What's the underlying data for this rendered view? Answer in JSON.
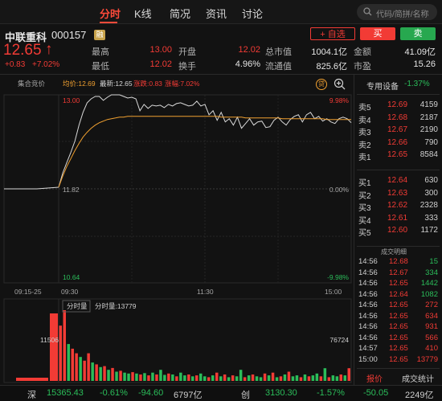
{
  "tabs": [
    {
      "label": "分时",
      "active": true
    },
    {
      "label": "K线",
      "active": false
    },
    {
      "label": "简况",
      "active": false
    },
    {
      "label": "资讯",
      "active": false
    },
    {
      "label": "讨论",
      "active": false
    }
  ],
  "search": {
    "placeholder": "代码/简拼/名称"
  },
  "stock": {
    "name": "中联重科",
    "code": "000157",
    "badge": "融",
    "price": "12.65",
    "arrow": "↑",
    "change": "+0.83",
    "change_pct": "+7.02%",
    "watch_label": "+ 自选",
    "sell_label": "卖",
    "buy_label": "买"
  },
  "stats": [
    [
      {
        "label": "最高",
        "value": "13.00",
        "color": "red"
      },
      {
        "label": "开盘",
        "value": "12.02",
        "color": "red"
      },
      {
        "label": "总市值",
        "value": "1004.1亿",
        "color": "white"
      },
      {
        "label": "金额",
        "value": "41.09亿",
        "color": "white"
      }
    ],
    [
      {
        "label": "最低",
        "value": "12.02",
        "color": "red"
      },
      {
        "label": "换手",
        "value": "4.96%",
        "color": "white"
      },
      {
        "label": "流通值",
        "value": "825.6亿",
        "color": "white"
      },
      {
        "label": "市盈",
        "value": "15.26",
        "color": "white"
      }
    ]
  ],
  "chart_header": {
    "auction_label": "集合竞价",
    "avg_label": "均价:12.69",
    "latest_label": "最新:12.65",
    "change_label": "涨跌:0.83",
    "pct_label": "涨幅:7.02%",
    "promo_badge": "贷"
  },
  "chart_data": {
    "type": "line",
    "x_ticks": [
      "09:15-25",
      "09:30",
      "11:30",
      "15:00"
    ],
    "y_left": {
      "top": "13.00",
      "mid": "11.82",
      "bottom": "10.64"
    },
    "y_right": {
      "top": "9.98%",
      "mid": "0.00%",
      "bottom": "-9.98%"
    },
    "ylim": [
      10.64,
      13.0
    ],
    "auction_price": [
      11.82,
      11.82,
      11.82,
      11.82,
      11.83,
      11.84
    ],
    "series": [
      {
        "name": "最新",
        "color": "#d8d8d8",
        "values": [
          11.84,
          12.02,
          12.15,
          12.28,
          12.42,
          12.62,
          12.78,
          12.9,
          12.95,
          12.98,
          12.98,
          12.93,
          12.97,
          13.0,
          13.0,
          13.0,
          12.98,
          12.96,
          12.97,
          12.95,
          12.8,
          12.88,
          12.83,
          12.87,
          12.86,
          12.87,
          12.84,
          12.88,
          12.86,
          12.89,
          12.9,
          12.88,
          12.86,
          12.87,
          12.92,
          12.86,
          12.88,
          12.75,
          12.8,
          12.68,
          12.78,
          12.66,
          12.7,
          12.62,
          12.72,
          12.58,
          12.64,
          12.7,
          12.62,
          12.66,
          12.67,
          12.59,
          12.6,
          12.68,
          12.72,
          12.66,
          12.62,
          12.69,
          12.73,
          12.75,
          12.66,
          12.75,
          12.78,
          12.7,
          12.73,
          12.67,
          12.7,
          12.66,
          12.64,
          12.7,
          12.72,
          12.7,
          12.65
        ]
      },
      {
        "name": "均价",
        "color": "#f0a030",
        "values": [
          11.84,
          11.98,
          12.1,
          12.2,
          12.3,
          12.39,
          12.47,
          12.53,
          12.58,
          12.62,
          12.65,
          12.67,
          12.69,
          12.7,
          12.71,
          12.72,
          12.72,
          12.73,
          12.73,
          12.73,
          12.73,
          12.73,
          12.73,
          12.73,
          12.73,
          12.73,
          12.73,
          12.73,
          12.73,
          12.73,
          12.73,
          12.73,
          12.73,
          12.73,
          12.73,
          12.73,
          12.73,
          12.73,
          12.73,
          12.73,
          12.72,
          12.72,
          12.72,
          12.72,
          12.72,
          12.72,
          12.71,
          12.71,
          12.71,
          12.71,
          12.71,
          12.71,
          12.71,
          12.71,
          12.71,
          12.7,
          12.7,
          12.7,
          12.7,
          12.7,
          12.7,
          12.7,
          12.7,
          12.7,
          12.7,
          12.7,
          12.69,
          12.69,
          12.69,
          12.69,
          12.69,
          12.69,
          12.69
        ]
      }
    ],
    "volume": {
      "label": "分时量",
      "current_label": "分时量:13779",
      "left_peak": "11506",
      "right_peak": "76724",
      "values": [
        60000,
        76724,
        40000,
        35000,
        30000,
        26000,
        22000,
        30000,
        20000,
        18000,
        15000,
        16000,
        12000,
        14000,
        10000,
        11000,
        9000,
        8000,
        9500,
        8000,
        7000,
        8500,
        6000,
        9000,
        7000,
        12000,
        6500,
        8000,
        7000,
        5000,
        9000,
        6000,
        7000,
        5000,
        6000,
        8000,
        5000,
        4000,
        6000,
        9000,
        5000,
        7000,
        4000,
        6000,
        5000,
        12000,
        4000,
        6000,
        7000,
        5000,
        4000,
        8000,
        6000,
        9000,
        4000,
        5000,
        7000,
        10000,
        5000,
        6000,
        4000,
        7000,
        5000,
        6000,
        8000,
        5000,
        13779,
        4000,
        6000,
        5000,
        7000,
        6000,
        13779
      ],
      "colors": [
        "r",
        "r",
        "g",
        "r",
        "r",
        "g",
        "r",
        "r",
        "g",
        "r",
        "g",
        "r",
        "g",
        "r",
        "g",
        "r",
        "g",
        "g",
        "r",
        "g",
        "r",
        "g",
        "r",
        "g",
        "r",
        "g",
        "g",
        "r",
        "g",
        "r",
        "g",
        "g",
        "r",
        "g",
        "r",
        "g",
        "g",
        "r",
        "g",
        "r",
        "g",
        "r",
        "g",
        "r",
        "g",
        "g",
        "r",
        "g",
        "r",
        "g",
        "g",
        "r",
        "g",
        "r",
        "g",
        "r",
        "g",
        "r",
        "g",
        "g",
        "r",
        "g",
        "r",
        "g",
        "g",
        "r",
        "g",
        "r",
        "g",
        "g",
        "r",
        "g",
        "r"
      ]
    }
  },
  "sector": {
    "name": "专用设备",
    "change": "-1.37%"
  },
  "orderbook": {
    "sells": [
      {
        "label": "卖5",
        "price": "12.69",
        "vol": "4159"
      },
      {
        "label": "卖4",
        "price": "12.68",
        "vol": "2187"
      },
      {
        "label": "卖3",
        "price": "12.67",
        "vol": "2190"
      },
      {
        "label": "卖2",
        "price": "12.66",
        "vol": "790"
      },
      {
        "label": "卖1",
        "price": "12.65",
        "vol": "8584"
      }
    ],
    "buys": [
      {
        "label": "买1",
        "price": "12.64",
        "vol": "630"
      },
      {
        "label": "买2",
        "price": "12.63",
        "vol": "300"
      },
      {
        "label": "买3",
        "price": "12.62",
        "vol": "2328"
      },
      {
        "label": "买4",
        "price": "12.61",
        "vol": "333"
      },
      {
        "label": "买5",
        "price": "12.60",
        "vol": "1172"
      }
    ]
  },
  "ticks_label": "成交明细",
  "ticks": [
    {
      "time": "14:56",
      "price": "12.68",
      "vol": "15",
      "c": "g"
    },
    {
      "time": "14:56",
      "price": "12.67",
      "vol": "334",
      "c": "g"
    },
    {
      "time": "14:56",
      "price": "12.65",
      "vol": "1442",
      "c": "g"
    },
    {
      "time": "14:56",
      "price": "12.64",
      "vol": "1082",
      "c": "g"
    },
    {
      "time": "14:56",
      "price": "12.65",
      "vol": "272",
      "c": "r"
    },
    {
      "time": "14:56",
      "price": "12.65",
      "vol": "634",
      "c": "r"
    },
    {
      "time": "14:56",
      "price": "12.65",
      "vol": "931",
      "c": "r"
    },
    {
      "time": "14:56",
      "price": "12.65",
      "vol": "566",
      "c": "r"
    },
    {
      "time": "14:57",
      "price": "12.65",
      "vol": "410",
      "c": "r"
    },
    {
      "time": "15:00",
      "price": "12.65",
      "vol": "13779",
      "c": "r"
    }
  ],
  "right_tabs": {
    "quote": "报价",
    "stats": "成交统计"
  },
  "bottom": {
    "sz": {
      "name": "深",
      "value": "15365.43",
      "pct": "-0.61%",
      "chg": "-94.60",
      "amount": "6797亿"
    },
    "cy": {
      "name": "创",
      "value": "3130.30",
      "pct": "-1.57%",
      "chg": "-50.05",
      "amount": "2249亿"
    }
  }
}
